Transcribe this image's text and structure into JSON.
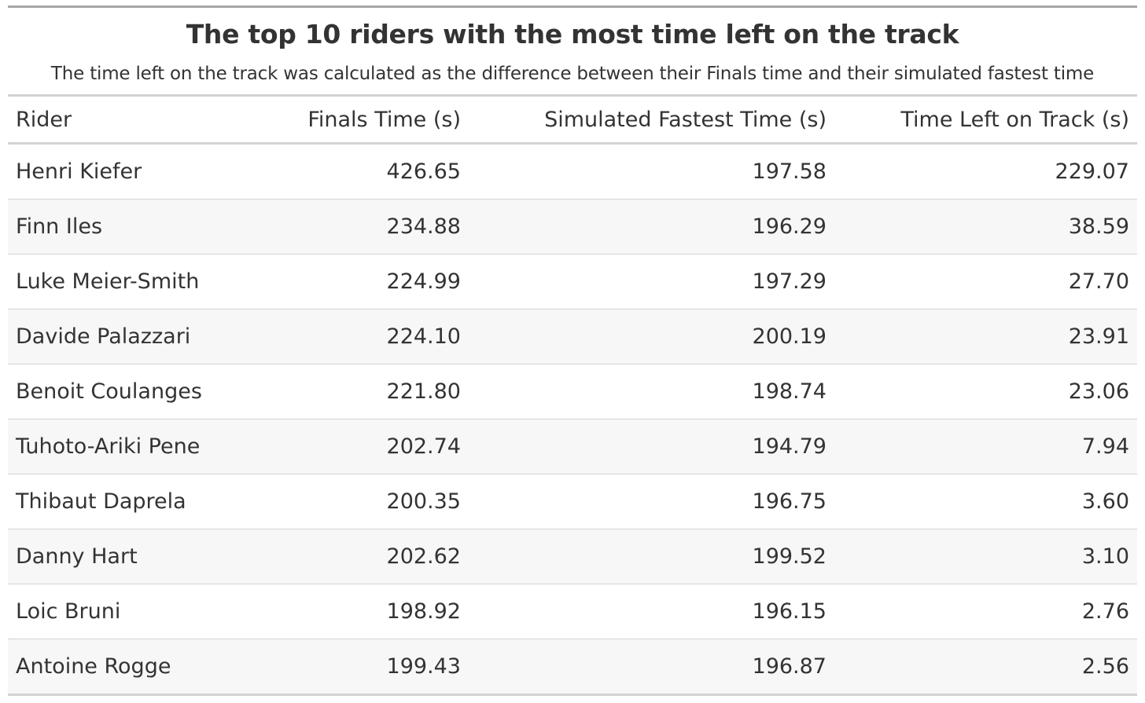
{
  "header": {
    "title": "The top 10 riders with the most time left on the track",
    "subtitle": "The time left on the track was calculated as the difference between their Finals time and their simulated fastest time"
  },
  "table": {
    "columns": [
      "Rider",
      "Finals Time (s)",
      "Simulated Fastest Time (s)",
      "Time Left on Track (s)"
    ],
    "rows": [
      [
        "Henri Kiefer",
        "426.65",
        "197.58",
        "229.07"
      ],
      [
        "Finn Iles",
        "234.88",
        "196.29",
        "38.59"
      ],
      [
        "Luke Meier-Smith",
        "224.99",
        "197.29",
        "27.70"
      ],
      [
        "Davide Palazzari",
        "224.10",
        "200.19",
        "23.91"
      ],
      [
        "Benoit Coulanges",
        "221.80",
        "198.74",
        "23.06"
      ],
      [
        "Tuhoto-Ariki Pene",
        "202.74",
        "194.79",
        "7.94"
      ],
      [
        "Thibaut Daprela",
        "200.35",
        "196.75",
        "3.60"
      ],
      [
        "Danny Hart",
        "202.62",
        "199.52",
        "3.10"
      ],
      [
        "Loic Bruni",
        "198.92",
        "196.15",
        "2.76"
      ],
      [
        "Antoine Rogge",
        "199.43",
        "196.87",
        "2.56"
      ]
    ]
  }
}
